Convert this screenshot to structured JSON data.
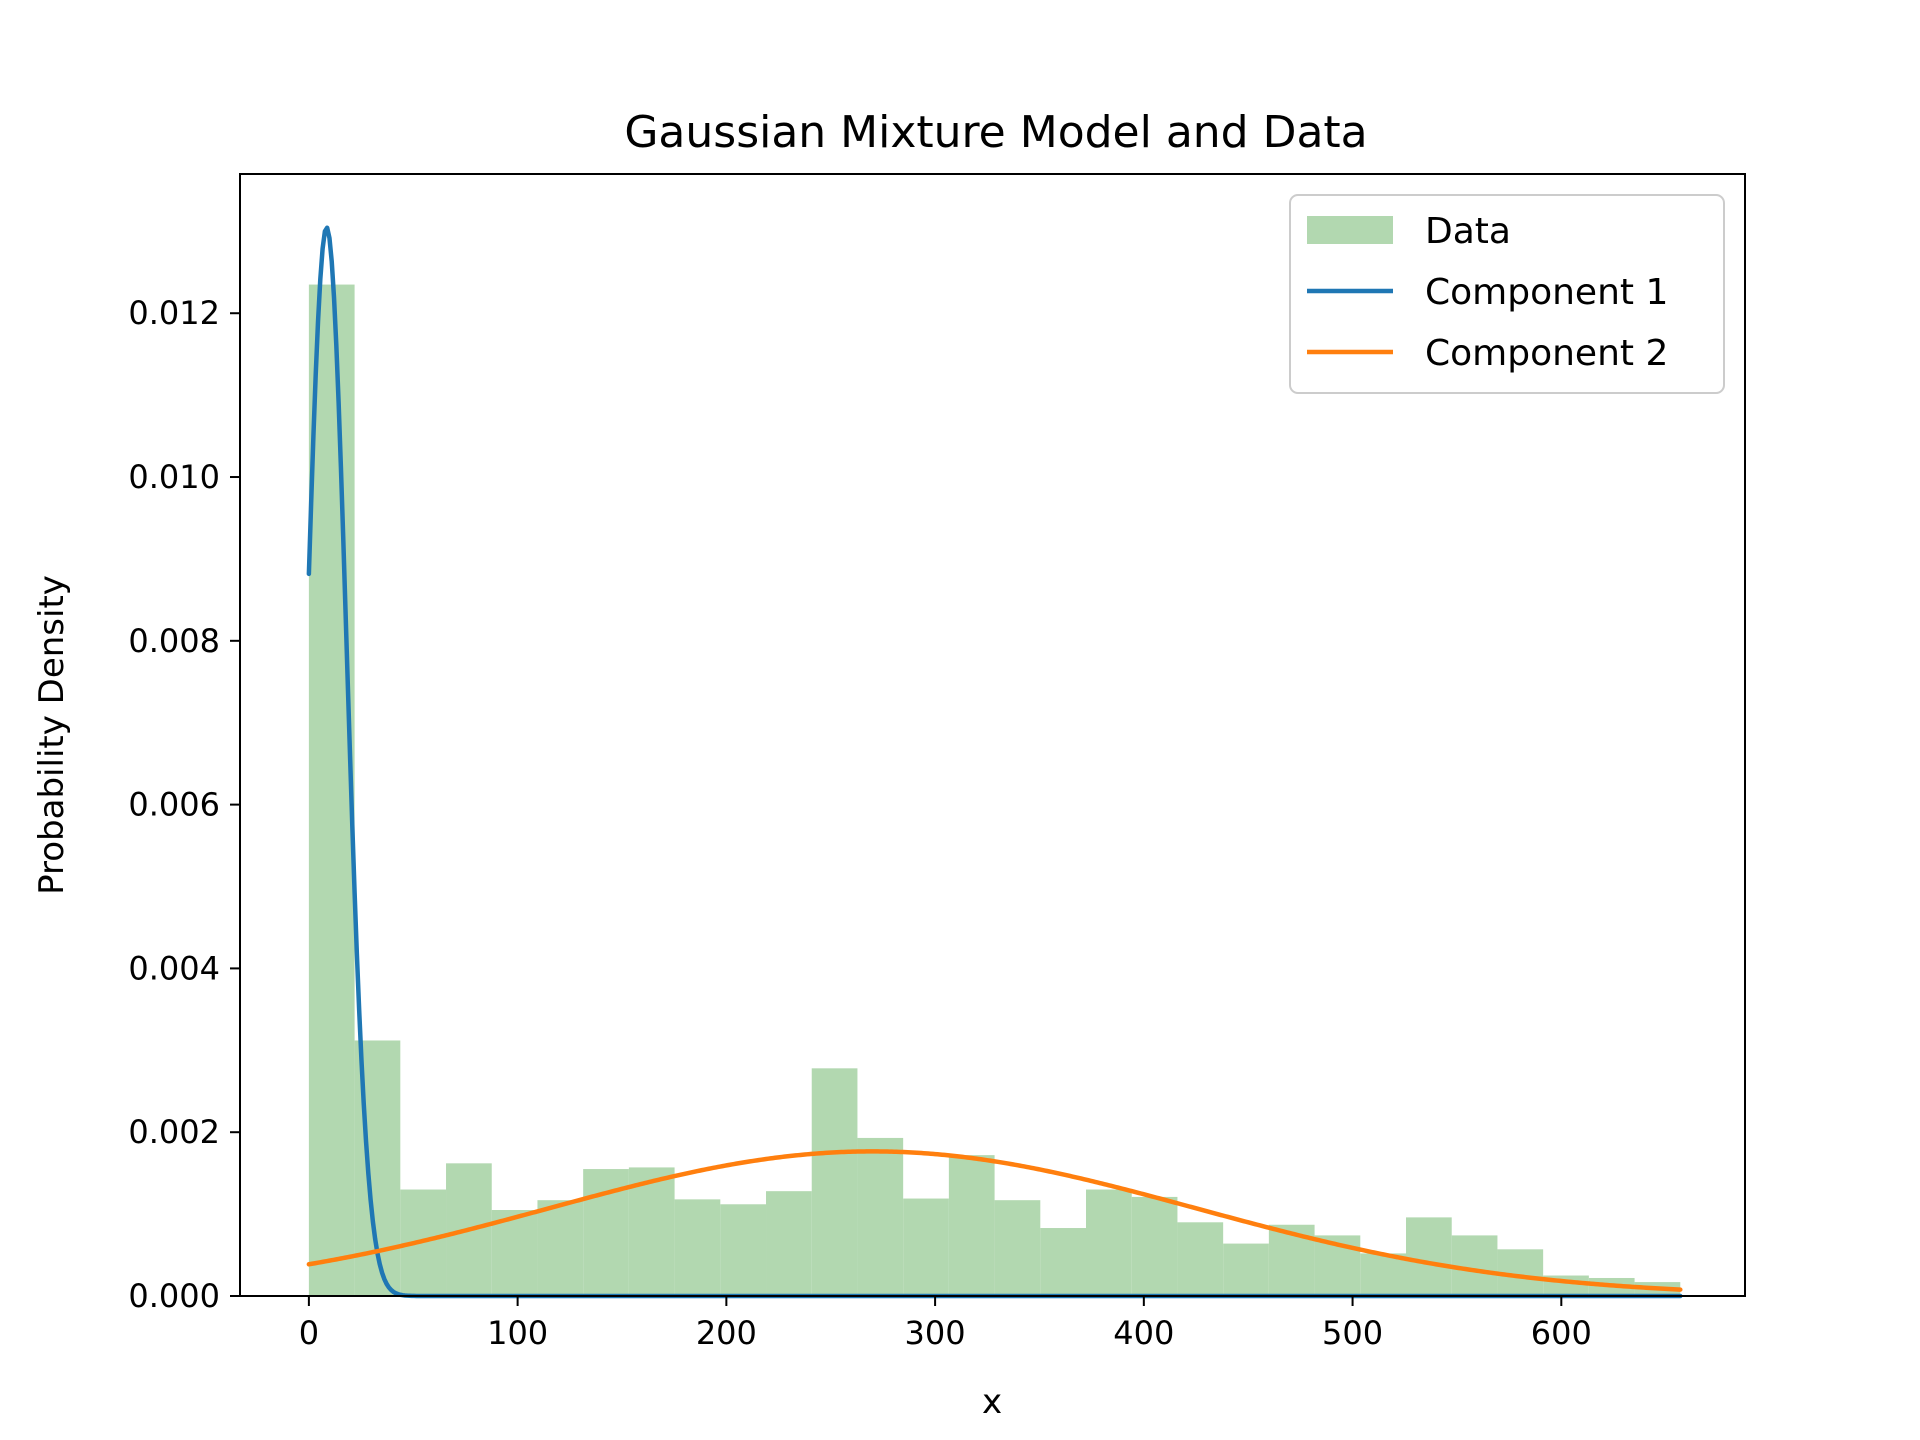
{
  "chart_data": {
    "type": "bar+line",
    "title": "Gaussian Mixture Model and Data",
    "xlabel": "x",
    "ylabel": "Probability Density",
    "xlim": [
      -33,
      688
    ],
    "ylim": [
      0,
      0.0137
    ],
    "xticks": [
      0,
      100,
      200,
      300,
      400,
      500,
      600
    ],
    "xtick_labels": [
      "0",
      "100",
      "200",
      "300",
      "400",
      "500",
      "600"
    ],
    "yticks": [
      0,
      0.002,
      0.004,
      0.006,
      0.008,
      0.01,
      0.012
    ],
    "ytick_labels": [
      "0.000",
      "0.002",
      "0.004",
      "0.006",
      "0.008",
      "0.010",
      "0.012"
    ],
    "grid": false,
    "legend_position": "upper-right",
    "histogram": {
      "name": "Data",
      "color": "#b2d8b0",
      "bin_edges": [
        0,
        21.9,
        43.8,
        65.7,
        87.6,
        109.5,
        131.4,
        153.3,
        175.2,
        197.1,
        219,
        240.9,
        262.8,
        284.7,
        306.6,
        328.5,
        350.4,
        372.3,
        394.2,
        416.1,
        438,
        459.9,
        481.8,
        503.7,
        525.6,
        547.5,
        569.4,
        591.3,
        613.2,
        635.1,
        657
      ],
      "values": [
        0.01235,
        0.00312,
        0.0013,
        0.00162,
        0.00105,
        0.00117,
        0.00155,
        0.00157,
        0.00118,
        0.00112,
        0.00128,
        0.00278,
        0.00193,
        0.00119,
        0.00172,
        0.00117,
        0.00083,
        0.0013,
        0.00121,
        0.0009,
        0.00064,
        0.00087,
        0.00074,
        0.00052,
        0.00096,
        0.00074,
        0.00057,
        0.00025,
        0.00022,
        0.00017
      ]
    },
    "series": [
      {
        "name": "Component 1",
        "color": "#1f77b4",
        "distribution": "gaussian",
        "mean": 8.5,
        "std": 9.6,
        "weight": 0.314,
        "x_range": [
          0,
          657
        ]
      },
      {
        "name": "Component 2",
        "color": "#ff7f0e",
        "distribution": "gaussian",
        "mean": 270,
        "std": 155,
        "weight": 0.686,
        "x_range": [
          0,
          657
        ]
      }
    ]
  }
}
